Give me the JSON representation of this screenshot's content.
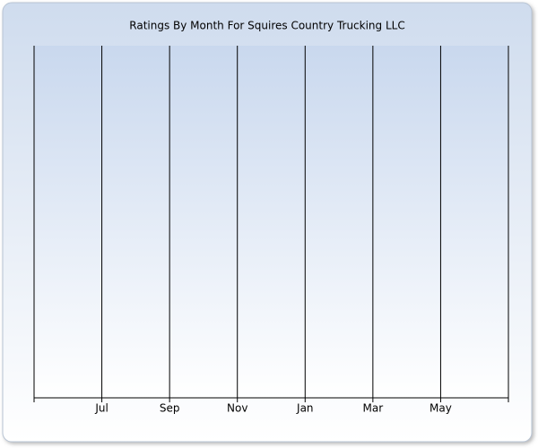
{
  "chart_data": {
    "type": "line",
    "title": "Ratings By Month For Squires Country Trucking LLC",
    "categories": [
      null,
      "Jul",
      "Sep",
      "Nov",
      "Jan",
      "Mar",
      "May",
      null
    ],
    "grid": true
  }
}
